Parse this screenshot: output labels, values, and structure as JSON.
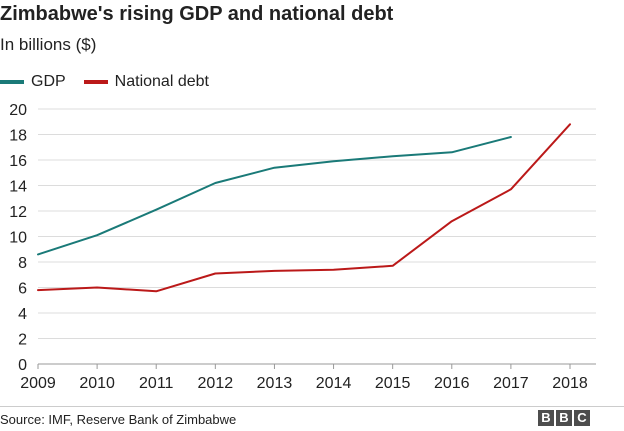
{
  "header": {
    "title": "Zimbabwe's rising GDP and national debt",
    "subtitle": "In billions ($)"
  },
  "footer": {
    "source": "Source: IMF, Reserve Bank of Zimbabwe",
    "logo_letters": [
      "B",
      "B",
      "C"
    ]
  },
  "chart_data": {
    "type": "line",
    "title": "Zimbabwe's rising GDP and national debt",
    "subtitle": "In billions ($)",
    "xlabel": "",
    "ylabel": "",
    "x": [
      2009,
      2010,
      2011,
      2012,
      2013,
      2014,
      2015,
      2016,
      2017,
      2018
    ],
    "ylim": [
      0,
      20
    ],
    "yticks": [
      0,
      2,
      4,
      6,
      8,
      10,
      12,
      14,
      16,
      18,
      20
    ],
    "grid": true,
    "legend_position": "top-left",
    "series": [
      {
        "name": "GDP",
        "color": "#1a7a78",
        "values": [
          8.6,
          10.1,
          12.1,
          14.2,
          15.4,
          15.9,
          16.3,
          16.6,
          17.8,
          null
        ]
      },
      {
        "name": "National debt",
        "color": "#bb1919",
        "values": [
          5.8,
          6.0,
          5.7,
          7.1,
          7.3,
          7.4,
          7.7,
          11.2,
          13.7,
          18.8
        ]
      }
    ]
  }
}
